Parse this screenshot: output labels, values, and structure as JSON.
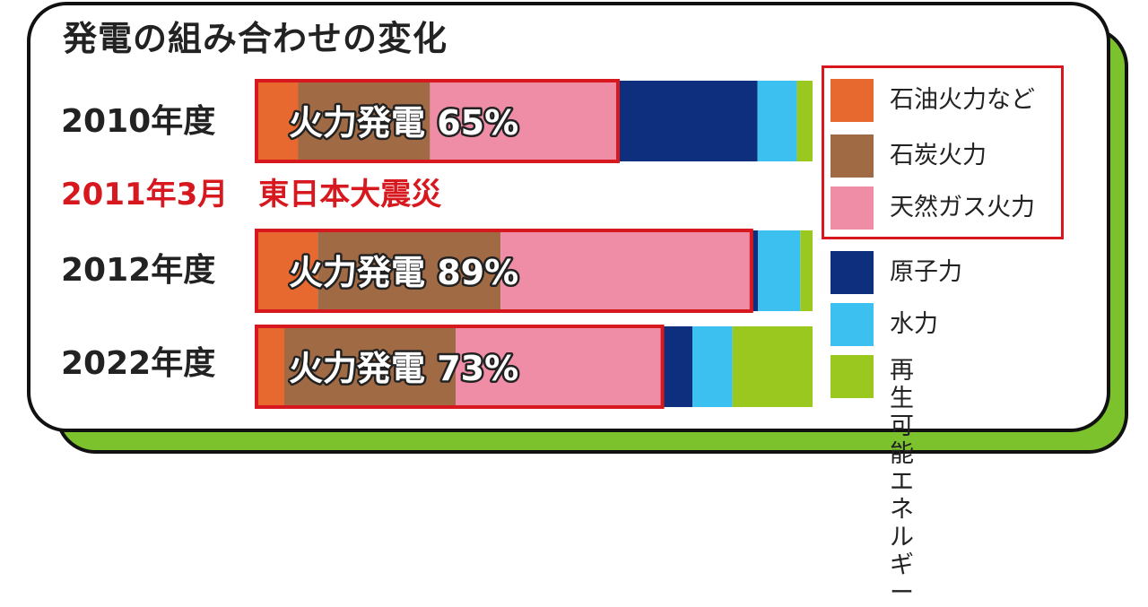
{
  "title": "発電の組み合わせの変化",
  "event": "2011年3月　東日本大震災",
  "colors": {
    "oil": "#e8692f",
    "coal": "#a06a45",
    "lng": "#ef8da7",
    "nuclear": "#0d2f7d",
    "hydro": "#3cc0ef",
    "renewable": "#9bc81e",
    "highlight": "#d7191f"
  },
  "chart_data": {
    "type": "bar",
    "orientation": "horizontal-stacked",
    "title": "発電の組み合わせの変化",
    "categories": [
      "2010年度",
      "2012年度",
      "2022年度"
    ],
    "series": [
      {
        "name": "石油火力など",
        "values": [
          7.5,
          11,
          5
        ]
      },
      {
        "name": "石炭火力",
        "values": [
          23.7,
          32.9,
          30.8
        ]
      },
      {
        "name": "天然ガス火力",
        "values": [
          33.8,
          45.1,
          37.2
        ]
      },
      {
        "name": "原子力",
        "values": [
          25.1,
          1.2,
          5.4
        ]
      },
      {
        "name": "水力",
        "values": [
          7.1,
          7.6,
          7.2
        ]
      },
      {
        "name": "再生可能エネルギー",
        "values": [
          2.8,
          2.2,
          14.4
        ]
      }
    ],
    "annotations": [
      "火力発電 65%",
      "火力発電 89%",
      "火力発電 73%"
    ],
    "legend_position": "right",
    "grid": false
  },
  "legend": [
    {
      "label": "石油火力など",
      "color_key": "oil"
    },
    {
      "label": "石炭火力",
      "color_key": "coal"
    },
    {
      "label": "天然ガス火力",
      "color_key": "lng"
    },
    {
      "label": "原子力",
      "color_key": "nuclear"
    },
    {
      "label": "水力",
      "color_key": "hydro"
    },
    {
      "label": "再生可能\nエネルギー",
      "color_key": "renewable"
    }
  ]
}
